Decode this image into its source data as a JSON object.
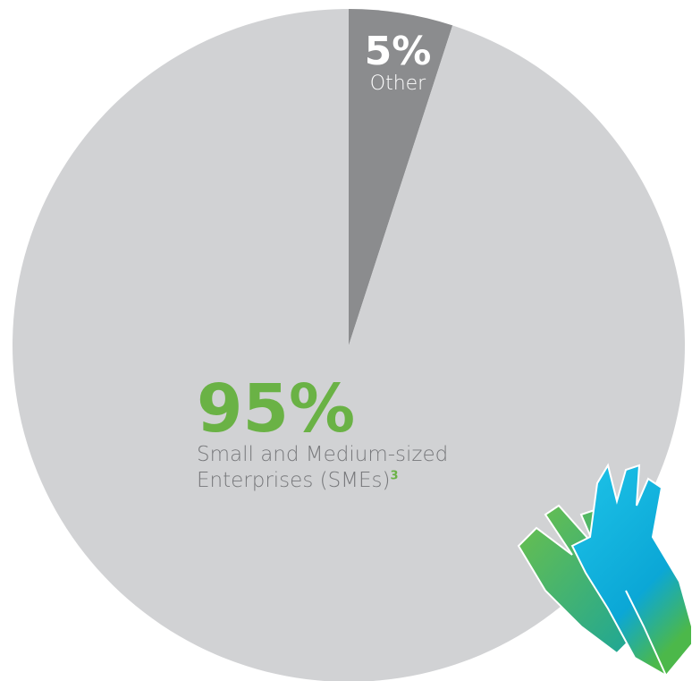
{
  "chart_data": {
    "type": "pie",
    "categories": [
      "Other",
      "Small and Medium-sized Enterprises (SMEs)"
    ],
    "values": [
      5,
      95
    ],
    "value_labels": [
      "5%",
      "95%"
    ],
    "colors": [
      "#8b8c8e",
      "#d1d2d4"
    ],
    "footnote": "3"
  }
}
